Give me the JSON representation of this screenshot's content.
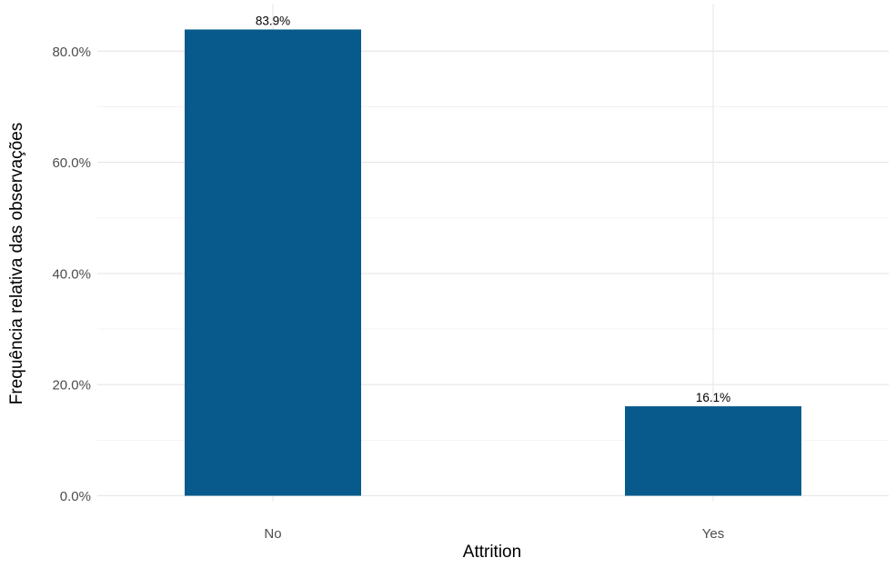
{
  "chart_data": {
    "type": "bar",
    "title": "",
    "xlabel": "Attrition",
    "ylabel": "Frequência relativa das observações",
    "categories": [
      "No",
      "Yes"
    ],
    "values": [
      83.9,
      16.1
    ],
    "data_labels": [
      "83.9%",
      "16.1%"
    ],
    "y_ticks": [
      0,
      20,
      40,
      60,
      80
    ],
    "y_tick_labels": [
      "0.0%",
      "20.0%",
      "40.0%",
      "60.0%",
      "80.0%"
    ],
    "ylim": [
      0,
      88.5
    ],
    "unit": "%",
    "grid": true,
    "legend": "none",
    "bar_color": "#085A8C"
  }
}
